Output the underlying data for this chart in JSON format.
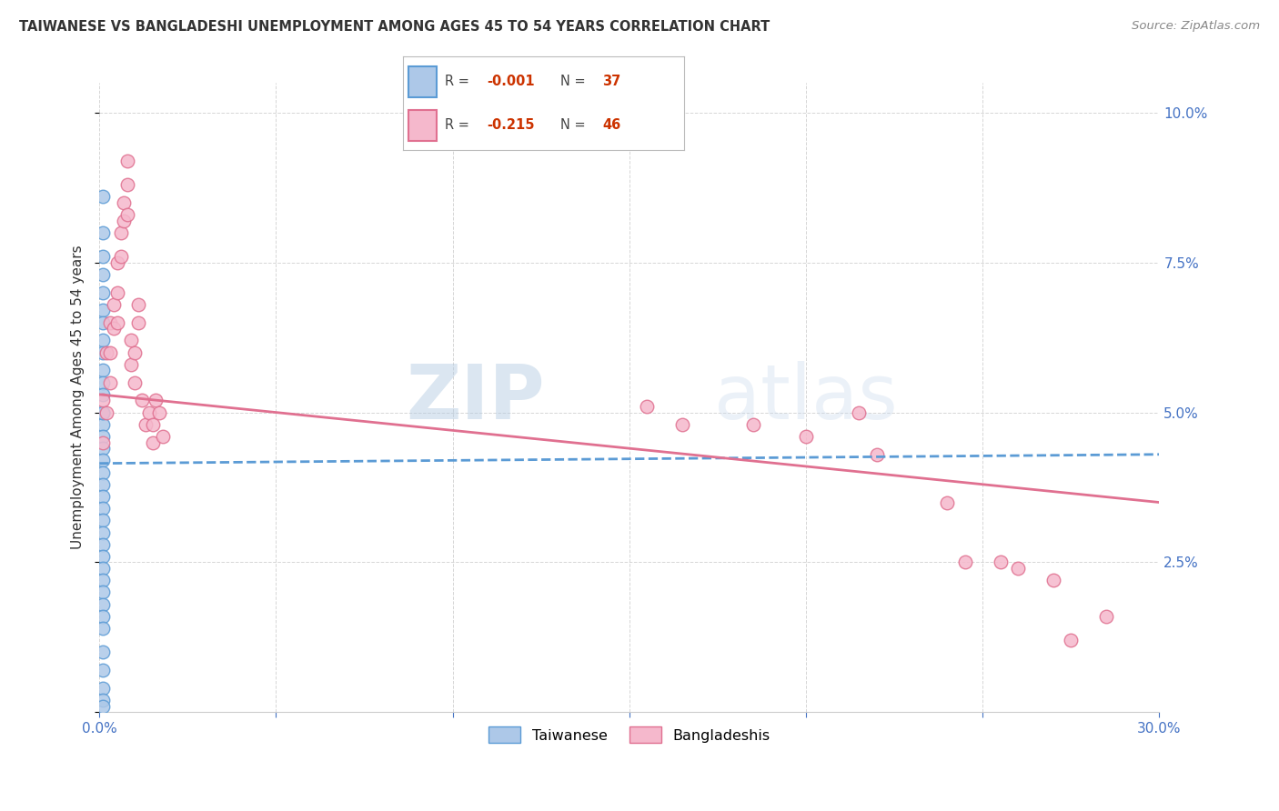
{
  "title": "TAIWANESE VS BANGLADESHI UNEMPLOYMENT AMONG AGES 45 TO 54 YEARS CORRELATION CHART",
  "source": "Source: ZipAtlas.com",
  "ylabel": "Unemployment Among Ages 45 to 54 years",
  "xlim": [
    0.0,
    0.3
  ],
  "ylim": [
    0.0,
    0.105
  ],
  "yticks": [
    0.0,
    0.025,
    0.05,
    0.075,
    0.1
  ],
  "ytick_labels": [
    "",
    "2.5%",
    "5.0%",
    "7.5%",
    "10.0%"
  ],
  "xticks": [
    0.0,
    0.05,
    0.1,
    0.15,
    0.2,
    0.25,
    0.3
  ],
  "xtick_labels": [
    "0.0%",
    "",
    "",
    "",
    "",
    "",
    "30.0%"
  ],
  "taiwanese_R": "-0.001",
  "taiwanese_N": "37",
  "bangladeshi_R": "-0.215",
  "bangladeshi_N": "46",
  "taiwanese_color": "#adc8e8",
  "taiwanese_edge_color": "#5b9bd5",
  "bangladeshi_color": "#f5b8cc",
  "bangladeshi_edge_color": "#e07090",
  "trend_taiwanese_color": "#5b9bd5",
  "trend_bangladeshi_color": "#e07090",
  "background_color": "#ffffff",
  "grid_color": "#cccccc",
  "taiwanese_x": [
    0.001,
    0.001,
    0.001,
    0.001,
    0.001,
    0.001,
    0.001,
    0.001,
    0.001,
    0.001,
    0.001,
    0.001,
    0.001,
    0.001,
    0.001,
    0.001,
    0.001,
    0.001,
    0.001,
    0.001,
    0.001,
    0.001,
    0.001,
    0.001,
    0.001,
    0.001,
    0.001,
    0.001,
    0.001,
    0.001,
    0.001,
    0.001,
    0.001,
    0.001,
    0.001,
    0.001,
    0.001
  ],
  "taiwanese_y": [
    0.086,
    0.08,
    0.076,
    0.073,
    0.07,
    0.067,
    0.065,
    0.062,
    0.06,
    0.057,
    0.055,
    0.053,
    0.05,
    0.048,
    0.046,
    0.044,
    0.042,
    0.04,
    0.038,
    0.036,
    0.034,
    0.032,
    0.03,
    0.028,
    0.026,
    0.024,
    0.022,
    0.02,
    0.018,
    0.016,
    0.014,
    0.01,
    0.007,
    0.004,
    0.002,
    0.001,
    0.05
  ],
  "bangladeshi_x": [
    0.001,
    0.001,
    0.002,
    0.002,
    0.003,
    0.003,
    0.003,
    0.004,
    0.004,
    0.005,
    0.005,
    0.005,
    0.006,
    0.006,
    0.007,
    0.007,
    0.008,
    0.008,
    0.008,
    0.009,
    0.009,
    0.01,
    0.01,
    0.011,
    0.011,
    0.012,
    0.013,
    0.014,
    0.015,
    0.015,
    0.016,
    0.017,
    0.018,
    0.155,
    0.165,
    0.185,
    0.2,
    0.215,
    0.22,
    0.24,
    0.245,
    0.255,
    0.26,
    0.27,
    0.275,
    0.285
  ],
  "bangladeshi_y": [
    0.052,
    0.045,
    0.06,
    0.05,
    0.065,
    0.06,
    0.055,
    0.068,
    0.064,
    0.075,
    0.07,
    0.065,
    0.08,
    0.076,
    0.085,
    0.082,
    0.092,
    0.088,
    0.083,
    0.062,
    0.058,
    0.06,
    0.055,
    0.068,
    0.065,
    0.052,
    0.048,
    0.05,
    0.048,
    0.045,
    0.052,
    0.05,
    0.046,
    0.051,
    0.048,
    0.048,
    0.046,
    0.05,
    0.043,
    0.035,
    0.025,
    0.025,
    0.024,
    0.022,
    0.012,
    0.016
  ],
  "tw_trend_x": [
    0.0,
    0.3
  ],
  "tw_trend_y": [
    0.0415,
    0.043
  ],
  "bd_trend_x": [
    0.0,
    0.3
  ],
  "bd_trend_y": [
    0.053,
    0.035
  ]
}
